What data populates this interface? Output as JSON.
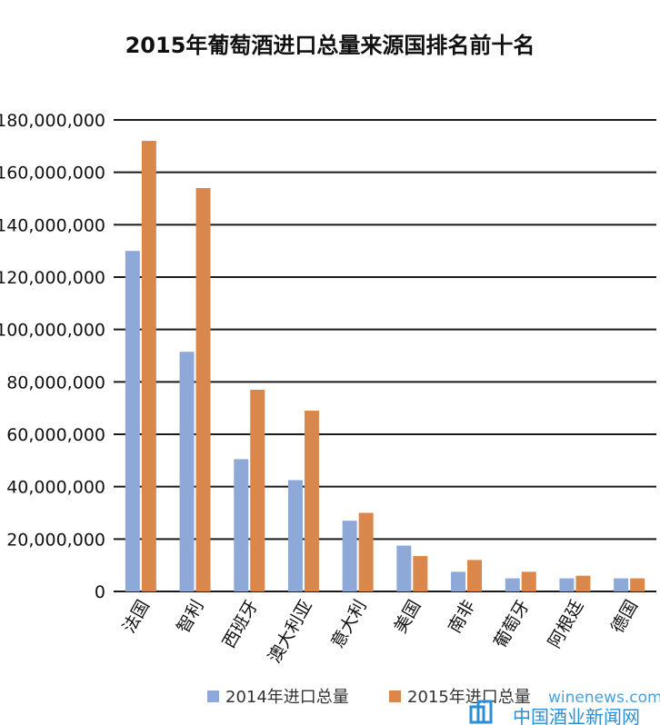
{
  "chart_data": {
    "type": "bar",
    "title": "2015年葡萄酒进口总量来源国排名前十名",
    "xlabel": "",
    "ylabel": "",
    "ylim": [
      0,
      180000000
    ],
    "yticks": [
      0,
      20000000,
      40000000,
      60000000,
      80000000,
      100000000,
      120000000,
      140000000,
      160000000,
      180000000
    ],
    "ytick_labels": [
      "0",
      "20,000,000",
      "40,000,000",
      "60,000,000",
      "80,000,000",
      "100,000,000",
      "120,000,000",
      "140,000,000",
      "160,000,000",
      "180,000,000"
    ],
    "categories": [
      "法国",
      "智利",
      "西班牙",
      "澳大利亚",
      "意大利",
      "美国",
      "南非",
      "葡萄牙",
      "阿根廷",
      "德国"
    ],
    "series": [
      {
        "name": "2014年进口总量",
        "color": "#8ea9d8",
        "values": [
          130000000,
          91500000,
          50500000,
          42500000,
          27000000,
          17500000,
          7500000,
          5000000,
          5000000,
          5000000
        ]
      },
      {
        "name": "2015年进口总量",
        "color": "#d9874a",
        "values": [
          172000000,
          154000000,
          77000000,
          69000000,
          30000000,
          13500000,
          12000000,
          7500000,
          6000000,
          5000000
        ]
      }
    ],
    "grid": true,
    "legend": "bottom"
  },
  "watermark": {
    "text_en": "winenews.com",
    "text_cn": "中国酒业新闻网",
    "color": "#2a8fd6"
  }
}
